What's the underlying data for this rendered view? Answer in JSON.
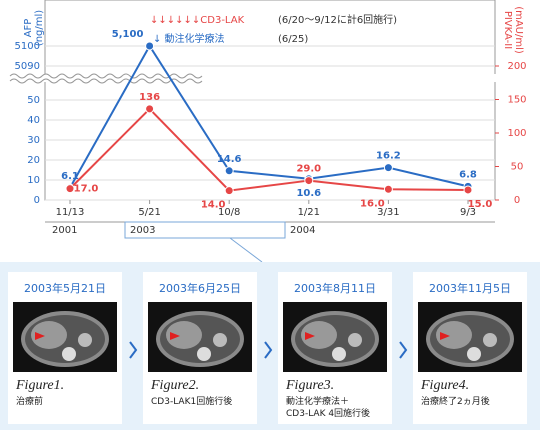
{
  "chart_data": {
    "type": "line",
    "ylabel": [
      "AFP",
      "(ng/ml)"
    ],
    "y2label": [
      "PIVKA-II",
      "(mAU/ml)"
    ],
    "categories": [
      "11/13",
      "5/21",
      "10/8",
      "1/21",
      "3/31",
      "9/3"
    ],
    "years": [
      "2001",
      "2003",
      "2004"
    ],
    "ylim": [
      0,
      5100
    ],
    "ybreak": [
      50,
      5090
    ],
    "yticks": [
      0,
      10,
      20,
      30,
      40,
      50,
      5090,
      5100
    ],
    "y2lim": [
      0,
      200
    ],
    "y2ticks": [
      0,
      50,
      100,
      150,
      200
    ],
    "grid": true,
    "series": [
      {
        "name": "AFP",
        "color": "#2a6cc4",
        "values": [
          6.1,
          5100,
          14.6,
          10.6,
          16.2,
          6.8
        ],
        "value_labels": [
          "6.1",
          "5,100",
          "14.6",
          "10.6",
          "16.2",
          "6.8"
        ]
      },
      {
        "name": "PIVKA-II",
        "color": "#e64646",
        "axis": "y2",
        "values": [
          17.0,
          136,
          14.0,
          29.0,
          16.0,
          15.0
        ],
        "value_labels": [
          "17.0",
          "136",
          "14.0",
          "29.0",
          "16.0",
          "15.0"
        ]
      }
    ],
    "annotations": [
      "↓↓↓↓↓↓CD3-LAK",
      "(6/20〜9/12に計6回施行)",
      "↓ 動注化学療法",
      "(6/25)"
    ]
  },
  "panels": [
    {
      "date": "2003年5月21日",
      "figure": "Figure1.",
      "caption": [
        "治療前"
      ]
    },
    {
      "date": "2003年6月25日",
      "figure": "Figure2.",
      "caption": [
        "CD3-LAK1回施行後"
      ]
    },
    {
      "date": "2003年8月11日",
      "figure": "Figure3.",
      "caption": [
        "動注化学療法＋",
        "CD3-LAK 4回施行後"
      ]
    },
    {
      "date": "2003年11月5日",
      "figure": "Figure4.",
      "caption": [
        "治療終了2ヵ月後"
      ]
    }
  ]
}
